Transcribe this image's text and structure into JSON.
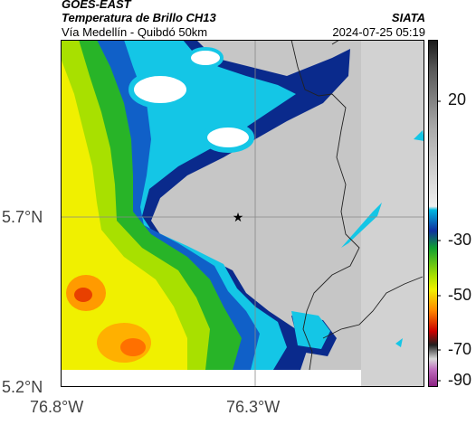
{
  "header": {
    "satellite": "GOES-EAST",
    "product": "Temperatura de Brillo CH13",
    "route": "Vía Medellín - Quibdó 50km",
    "agency": "SIATA",
    "datetime": "2024-07-25 05:19"
  },
  "axes": {
    "y_ticks": [
      "5.7°N",
      "5.2°N"
    ],
    "x_ticks": [
      "76.8°W",
      "76.3°W"
    ]
  },
  "colorbar": {
    "ticks": [
      "20",
      "-30",
      "-50",
      "-70",
      "-90"
    ],
    "colors": [
      "#2b2b2b",
      "#8a8a8a",
      "#e8e8e8",
      "#00a8d8",
      "#1a3a9a",
      "#10a030",
      "#f0f000",
      "#ff8800",
      "#cc0000",
      "#202020",
      "#d0d0d0",
      "#a040a0"
    ]
  },
  "map": {
    "marker": "star-marker",
    "colors": {
      "yellow": "#f0f000",
      "lime": "#a8e000",
      "green": "#28b428",
      "orange": "#ff9a00",
      "navy": "#0a2a8c",
      "cyan": "#12c8e8",
      "gray": "#c4c4c4"
    }
  }
}
